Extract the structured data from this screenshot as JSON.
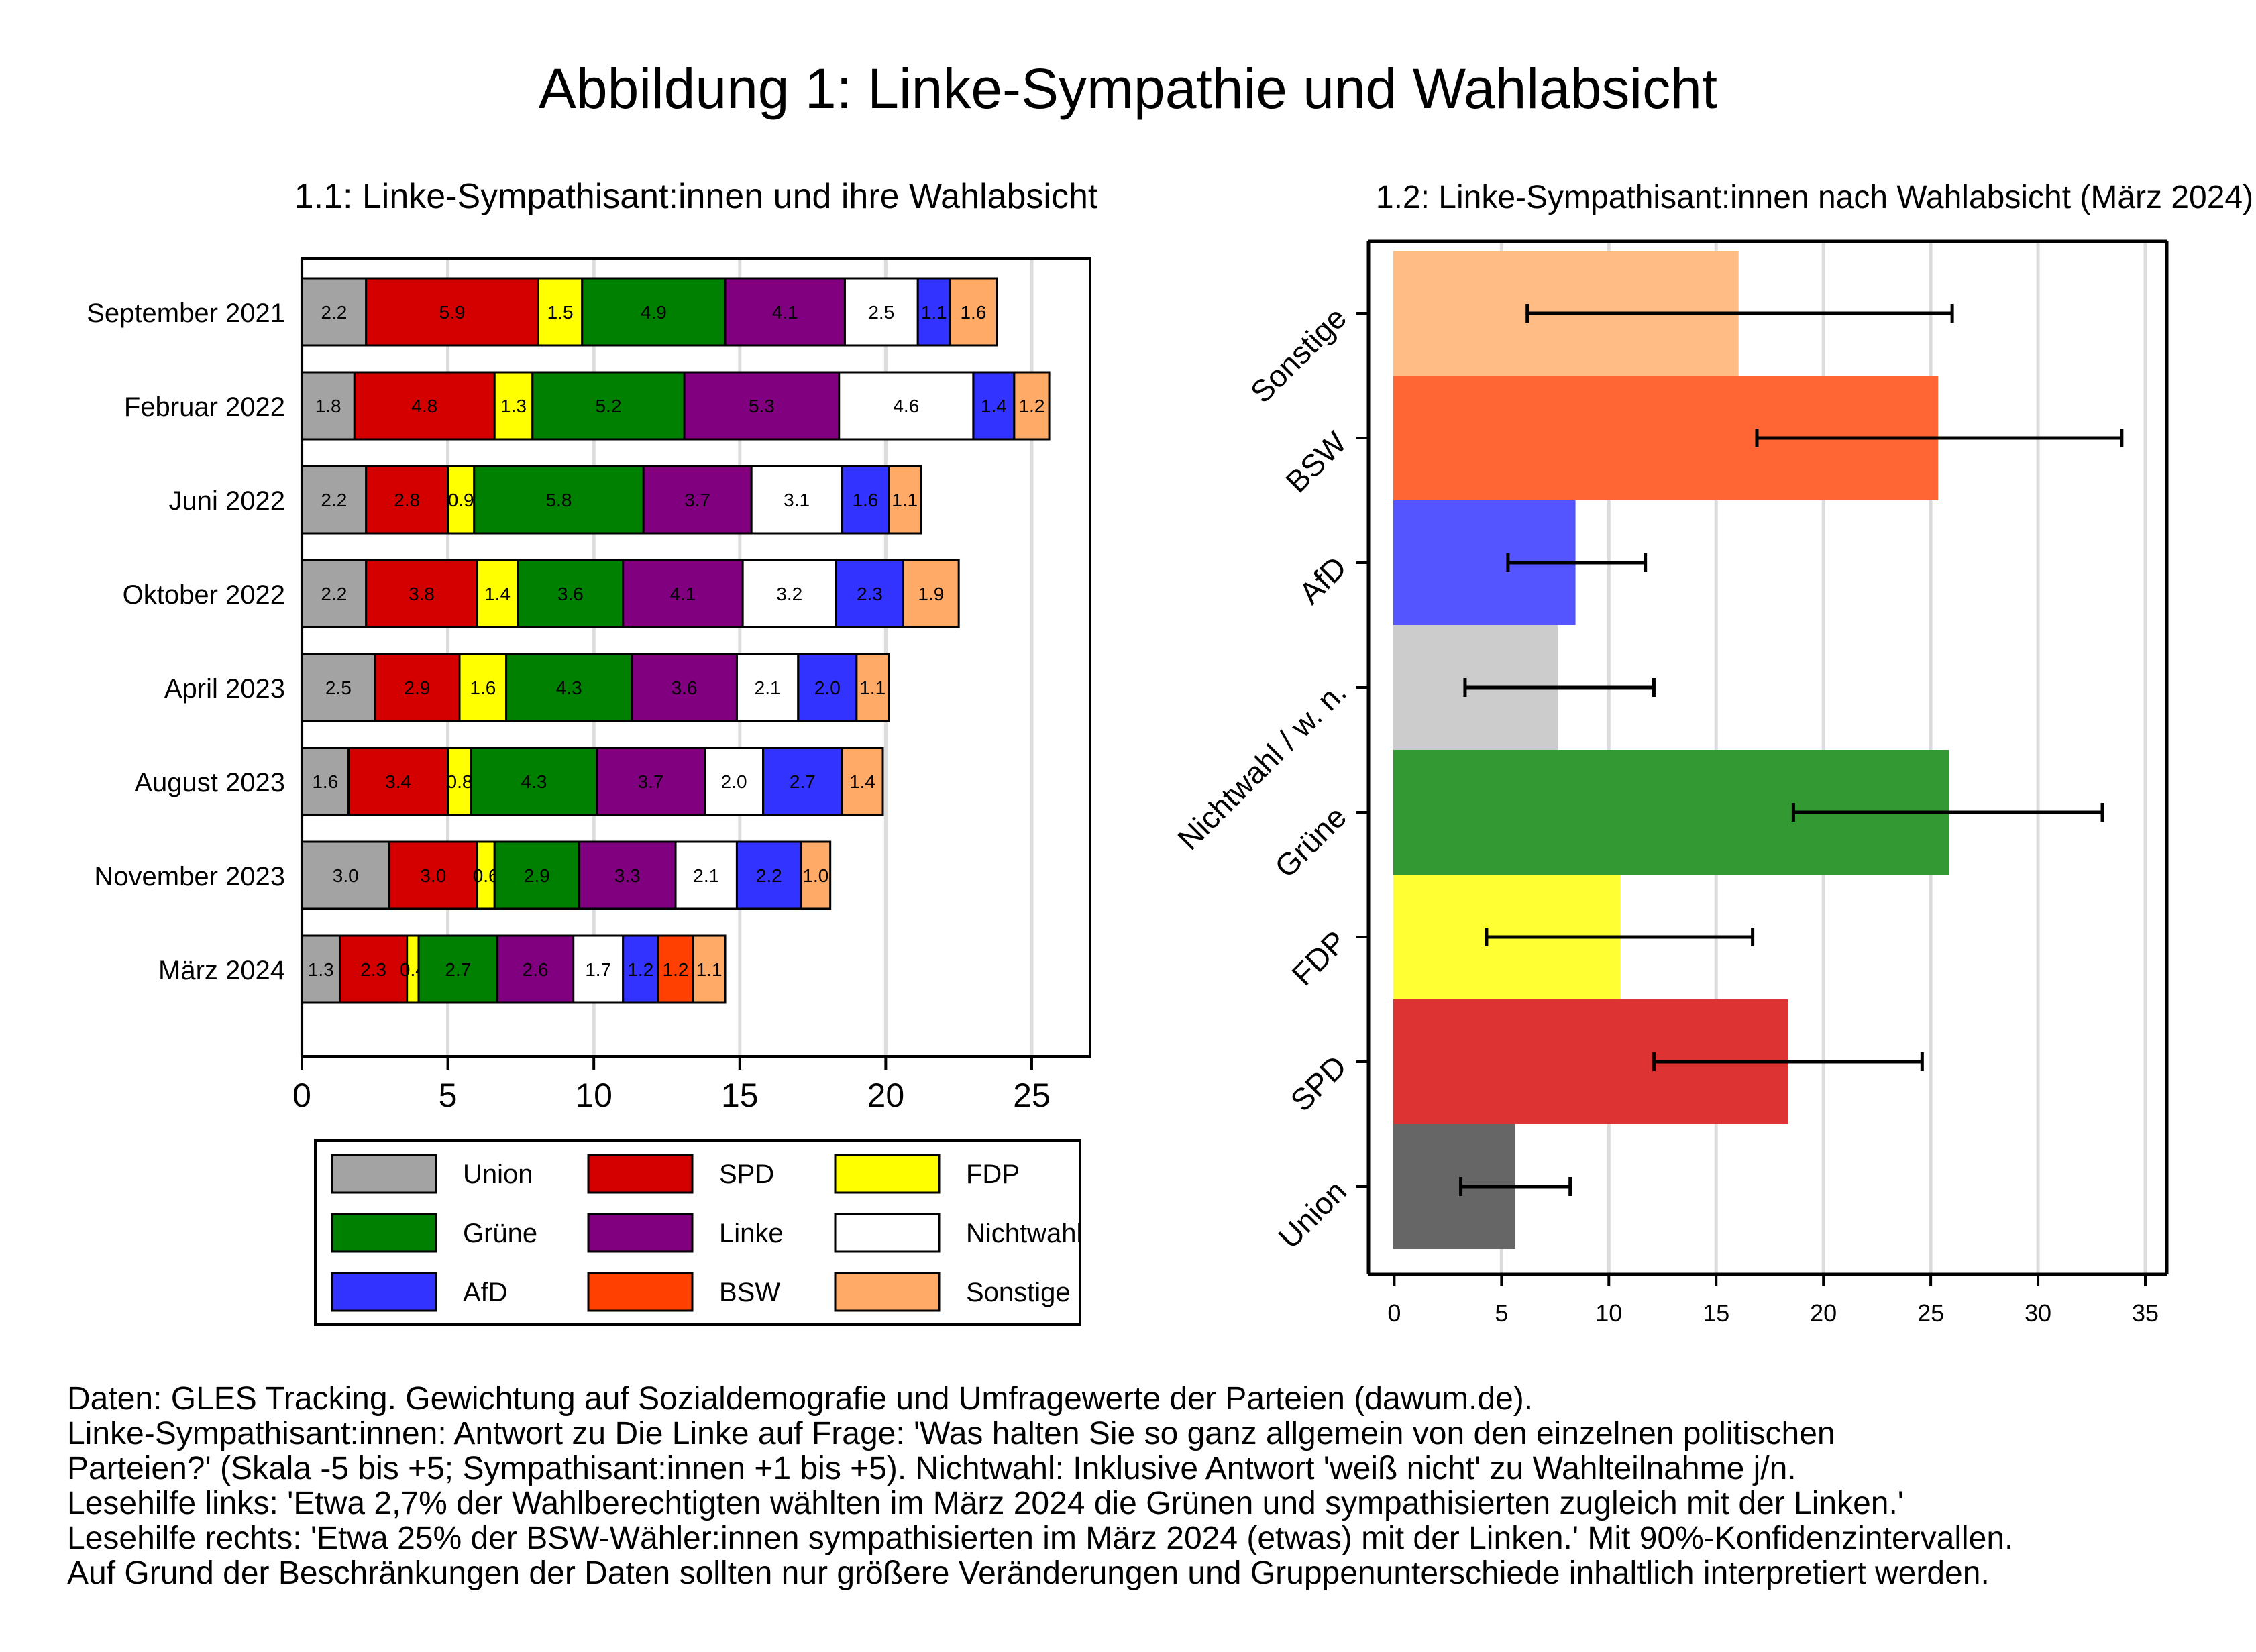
{
  "title": "Abbildung 1: Linke-Sympathie und Wahlabsicht",
  "colors": {
    "Union": "#a3a3a3",
    "SPD": "#d40000",
    "FDP": "#ffff00",
    "Grüne": "#008000",
    "Linke": "#800080",
    "Nichtwahl": "#ffffff",
    "AfD": "#3333ff",
    "BSW": "#ff4000",
    "Sonstige": "#ffaa66"
  },
  "chart_data": [
    {
      "type": "bar",
      "orientation": "horizontal-stacked",
      "title": "1.1: Linke-Sympathisant:innen und ihre Wahlabsicht",
      "xlim": [
        0,
        27
      ],
      "xticks": [
        0,
        5,
        10,
        15,
        20,
        25
      ],
      "grid": true,
      "legend_position": "bottom",
      "legend": [
        "Union",
        "SPD",
        "FDP",
        "Grüne",
        "Linke",
        "Nichtwahl",
        "AfD",
        "BSW",
        "Sonstige"
      ],
      "categories": [
        "September 2021",
        "Februar 2022",
        "Juni 2022",
        "Oktober 2022",
        "April 2023",
        "August 2023",
        "November 2023",
        "März 2024"
      ],
      "series": [
        {
          "name": "Union",
          "values": [
            2.2,
            1.8,
            2.2,
            2.2,
            2.5,
            1.6,
            3.0,
            1.3
          ],
          "labels": [
            "2.2",
            "1.8",
            "2.2",
            "2.2",
            "2.5",
            "1.6",
            "3.0",
            "1.3"
          ]
        },
        {
          "name": "SPD",
          "values": [
            5.9,
            4.8,
            2.8,
            3.8,
            2.9,
            3.4,
            3.0,
            2.3
          ],
          "labels": [
            "5.9",
            "4.8",
            "2.8",
            "3.8",
            "2.9",
            "3.4",
            "3.0",
            "2.3"
          ]
        },
        {
          "name": "FDP",
          "values": [
            1.5,
            1.3,
            0.9,
            1.4,
            1.6,
            0.8,
            0.6,
            0.4
          ],
          "labels": [
            "1.5",
            "1.3",
            "0.9",
            "1.4",
            "1.6",
            "0.8",
            "0.6",
            "0.4"
          ]
        },
        {
          "name": "Grüne",
          "values": [
            4.9,
            5.2,
            5.8,
            3.6,
            4.3,
            4.3,
            2.9,
            2.7
          ],
          "labels": [
            "4.9",
            "5.2",
            "5.8",
            "3.6",
            "4.3",
            "4.3",
            "2.9",
            "2.7"
          ]
        },
        {
          "name": "Linke",
          "values": [
            4.1,
            5.3,
            3.7,
            4.1,
            3.6,
            3.7,
            3.3,
            2.6
          ],
          "labels": [
            "4.1",
            "5.3",
            "3.7",
            "4.1",
            "3.6",
            "3.7",
            "3.3",
            "2.6"
          ]
        },
        {
          "name": "Nichtwahl",
          "values": [
            2.5,
            4.6,
            3.1,
            3.2,
            2.1,
            2.0,
            2.1,
            1.7
          ],
          "labels": [
            "2.5",
            "4.6",
            "3.1",
            "3.2",
            "2.1",
            "2.0",
            "2.1",
            "1.7"
          ]
        },
        {
          "name": "AfD",
          "values": [
            1.1,
            1.4,
            1.6,
            2.3,
            2.0,
            2.7,
            2.2,
            1.2
          ],
          "labels": [
            "1.1",
            "1.4",
            "1.6",
            "2.3",
            "2.0",
            "2.7",
            "2.2",
            "1.2"
          ]
        },
        {
          "name": "BSW",
          "values": [
            0,
            0,
            0,
            0,
            0,
            0,
            0,
            1.2
          ],
          "labels": [
            "",
            "",
            "",
            "",
            "",
            "",
            "",
            "1.2"
          ]
        },
        {
          "name": "Sonstige",
          "values": [
            1.6,
            1.2,
            1.1,
            1.9,
            1.1,
            1.4,
            1.0,
            1.1
          ],
          "labels": [
            "1.6",
            "1.2",
            "1.1",
            "1.9",
            "1.1",
            "1.4",
            "1.0",
            "1.1"
          ]
        }
      ]
    },
    {
      "type": "bar",
      "orientation": "horizontal",
      "title": "1.2: Linke-Sympathisant:innen nach Wahlabsicht (März 2024)",
      "xlim": [
        -1.2,
        36
      ],
      "xticks": [
        0,
        5,
        10,
        15,
        20,
        25,
        30,
        35
      ],
      "grid": true,
      "categories": [
        "Sonstige",
        "BSW",
        "AfD",
        "Nichtwahl / w. n.",
        "Grüne",
        "FDP",
        "SPD",
        "Union"
      ],
      "values": [
        16.0,
        25.3,
        8.4,
        7.6,
        25.8,
        10.5,
        18.3,
        5.6
      ],
      "ci_low": [
        6.2,
        16.9,
        5.3,
        3.3,
        18.6,
        4.3,
        12.1,
        3.1
      ],
      "ci_high": [
        26.0,
        33.9,
        11.7,
        12.1,
        33.0,
        16.7,
        24.6,
        8.2
      ],
      "colors": [
        "#ffbd85",
        "#ff6633",
        "#5555ff",
        "#cccccc",
        "#339933",
        "#ffff33",
        "#dd3333",
        "#666666"
      ]
    }
  ],
  "notes": [
    "Daten: GLES Tracking. Gewichtung auf Sozialdemografie und Umfragewerte der Parteien (dawum.de).",
    "Linke-Sympathisant:innen: Antwort zu Die Linke auf Frage: 'Was halten Sie so ganz allgemein von den einzelnen politischen",
    "Parteien?' (Skala -5 bis +5; Sympathisant:innen +1 bis +5). Nichtwahl: Inklusive Antwort 'weiß nicht' zu Wahlteilnahme j/n.",
    "Lesehilfe links: 'Etwa 2,7% der Wahlberechtigten wählten im März 2024 die Grünen und sympathisierten zugleich mit der Linken.'",
    "Lesehilfe rechts: 'Etwa 25% der BSW-Wähler:innen sympathisierten im März 2024 (etwas) mit der Linken.' Mit 90%-Konfidenzintervallen.",
    "Auf Grund der Beschränkungen der Daten sollten nur größere Veränderungen und Gruppenunterschiede inhaltlich interpretiert werden."
  ]
}
